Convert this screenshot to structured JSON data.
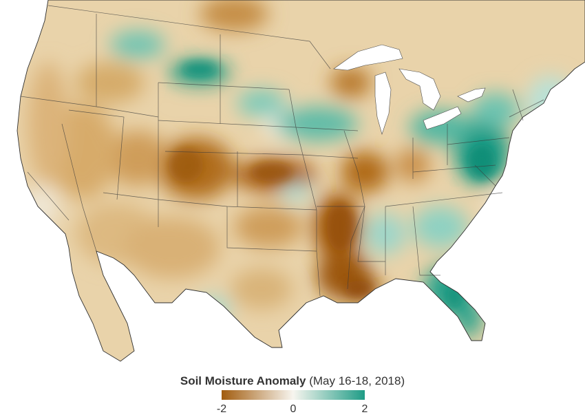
{
  "map": {
    "region": "contiguous-united-states",
    "palette": {
      "dry": "#a25c0e",
      "neutral": "#f3efe6",
      "wet": "#1f9c86",
      "water": "#ffffff",
      "border": "#3a3a3a"
    }
  },
  "legend": {
    "title_bold": "Soil Moisture Anomaly",
    "title_light": "(May 16-18, 2018)",
    "scale_min": -2,
    "scale_max": 2,
    "ticks": [
      {
        "value": -2,
        "label": "-2"
      },
      {
        "value": 0,
        "label": "0"
      },
      {
        "value": 2,
        "label": "2"
      }
    ],
    "colors": {
      "low": "#a25c0e",
      "mid": "#f7f5ef",
      "high": "#1f9c86"
    }
  }
}
